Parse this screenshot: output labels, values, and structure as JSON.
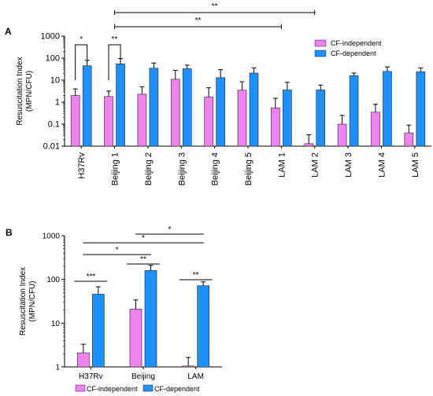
{
  "panels": {
    "a": {
      "letter": "A"
    },
    "b": {
      "letter": "B"
    }
  },
  "colors": {
    "cf_independent": "#ee82ee",
    "cf_dependent": "#1e90ff",
    "axis": "#000000",
    "bracket": "#000000"
  },
  "chart_data": [
    {
      "type": "bar",
      "panel": "A",
      "categories": [
        "H37Rv",
        "Beijing 1",
        "Beijing 2",
        "Beijing 3",
        "Beijing 4",
        "Beijing 5",
        "LAM 1",
        "LAM 2",
        "LAM 3",
        "LAM 4",
        "LAM 5"
      ],
      "series": [
        {
          "name": "CF-independent",
          "values": [
            2.0,
            1.8,
            2.3,
            11,
            1.7,
            3.5,
            0.55,
            0.013,
            0.1,
            0.35,
            0.04
          ],
          "errors": [
            4.0,
            3.2,
            5.0,
            28,
            4.5,
            8.5,
            1.5,
            0.033,
            0.25,
            0.8,
            0.09
          ]
        },
        {
          "name": "CF-dependent",
          "values": [
            45,
            55,
            35,
            33,
            13,
            21,
            3.6,
            3.6,
            16,
            25,
            24
          ],
          "errors": [
            80,
            95,
            60,
            48,
            30,
            36,
            8,
            6,
            21,
            40,
            36
          ]
        }
      ],
      "ylabel": "Resuscitation Index (MPN/CFU)",
      "yscale": "log",
      "ylim": [
        0.01,
        1000
      ],
      "yticks": [
        "0.01",
        "0.1",
        "1",
        "10",
        "100",
        "1000"
      ],
      "legend_position": "top-right",
      "significance": [
        {
          "from": 0,
          "to": 0,
          "label": "*"
        },
        {
          "from": 1,
          "to": 1,
          "label": "**"
        },
        {
          "from": 1,
          "to": 7,
          "label": "**"
        },
        {
          "from": 1,
          "to": 6,
          "label": "**"
        }
      ]
    },
    {
      "type": "bar",
      "panel": "B",
      "categories": [
        "H37Rv",
        "Beijing",
        "LAM"
      ],
      "series": [
        {
          "name": "CF-independent",
          "values": [
            2.1,
            21,
            1.05
          ],
          "errors": [
            3.3,
            34,
            1.65
          ]
        },
        {
          "name": "CF-dependent",
          "values": [
            46,
            160,
            72
          ],
          "errors": [
            68,
            210,
            88
          ]
        }
      ],
      "ylabel": "Resuscitation Index (MPN/CFU)",
      "yscale": "log",
      "ylim": [
        1,
        1000
      ],
      "yticks": [
        "1",
        "10",
        "100",
        "1000"
      ],
      "legend_position": "bottom",
      "significance": [
        {
          "from": 0,
          "to": 0,
          "label": "***"
        },
        {
          "from": 1,
          "to": 1,
          "label": "**"
        },
        {
          "from": 2,
          "to": 2,
          "label": "**"
        },
        {
          "from": 0,
          "to": 1,
          "label": "*"
        },
        {
          "from": 0,
          "to": 2,
          "label": "*"
        },
        {
          "from": 1,
          "to": 2,
          "label": "*"
        }
      ]
    }
  ]
}
